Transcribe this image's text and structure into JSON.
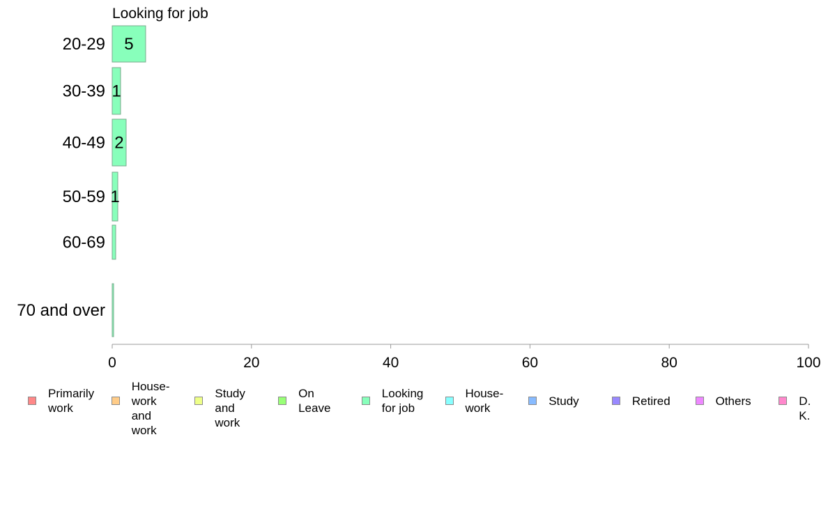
{
  "chart_data": {
    "type": "bar",
    "orientation": "horizontal",
    "title": "Looking for job",
    "categories": [
      "20-29",
      "30-39",
      "40-49",
      "50-59",
      "60-69",
      "70 and over"
    ],
    "values": [
      4.8,
      1.2,
      2.0,
      0.8,
      0.5,
      0.2
    ],
    "data_labels": [
      "5",
      "1",
      "2",
      "1",
      "",
      ""
    ],
    "xlim": [
      0,
      100
    ],
    "x_ticks": [
      "0",
      "20",
      "40",
      "60",
      "80",
      "100"
    ],
    "x_tick_values": [
      0,
      20,
      40,
      60,
      80,
      100
    ],
    "grid": false,
    "legend_placement": "bottom",
    "bar_color": "#88ffbb",
    "legend": [
      {
        "label": "Primarily\nwork",
        "color": "#ff8888"
      },
      {
        "label": "House-\nwork\nand work",
        "color": "#ffcc88"
      },
      {
        "label": "Study\nand work",
        "color": "#eeff88"
      },
      {
        "label": "On\nLeave",
        "color": "#99ff77"
      },
      {
        "label": "Looking\nfor job",
        "color": "#88ffbb"
      },
      {
        "label": "House-\nwork",
        "color": "#88ffff"
      },
      {
        "label": "Study",
        "color": "#88bbff"
      },
      {
        "label": "Retired",
        "color": "#9988ff"
      },
      {
        "label": "Others",
        "color": "#ee88ff"
      },
      {
        "label": "D. K.",
        "color": "#ff88cc"
      }
    ]
  }
}
